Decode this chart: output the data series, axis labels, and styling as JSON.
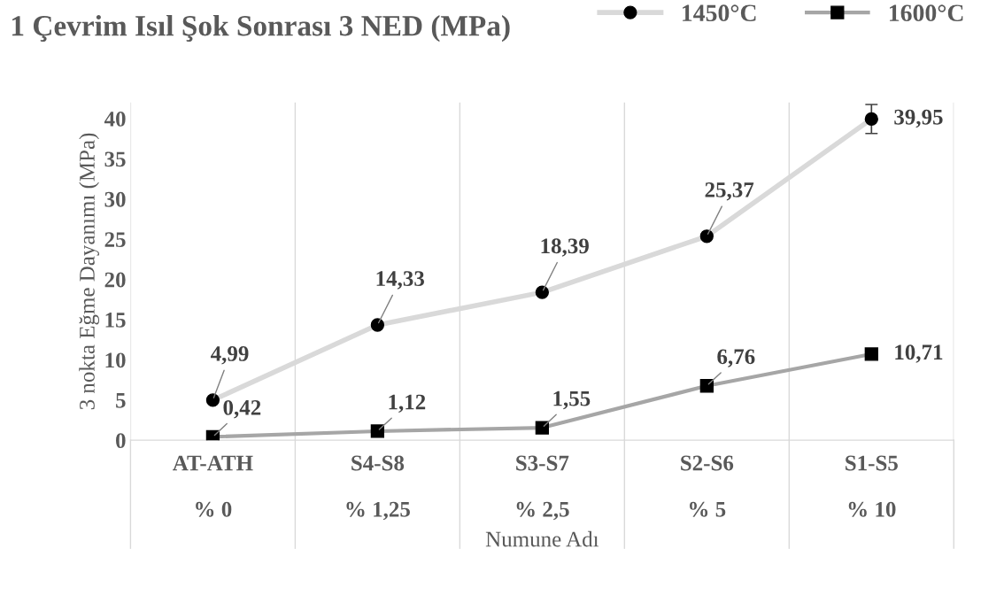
{
  "chart_data": {
    "type": "line",
    "title": "1 Çevrim Isıl Şok Sonrası 3 NED (MPa)",
    "xlabel": "Numune Adı",
    "ylabel": "3 nokta Eğme Dayanımı (MPa)",
    "categories": [
      "AT-ATH\n\n% 0",
      "S4-S8\n\n% 1,25",
      "S3-S7\n\n% 2,5",
      "S2-S6\n\n% 5",
      "S1-S5\n\n% 10"
    ],
    "series": [
      {
        "name": "1450°C",
        "color": "#d9d9d9",
        "marker": "circle",
        "values": [
          4.99,
          14.33,
          18.39,
          25.37,
          39.95
        ],
        "value_labels": [
          "4,99",
          "14,33",
          "18,39",
          "25,37",
          "39,95"
        ],
        "errors": [
          null,
          null,
          null,
          null,
          1.8
        ]
      },
      {
        "name": "1600°C",
        "color": "#a6a6a6",
        "marker": "square",
        "values": [
          0.42,
          1.12,
          1.55,
          6.76,
          10.71
        ],
        "value_labels": [
          "0,42",
          "1,12",
          "1,55",
          "6,76",
          "10,71"
        ]
      }
    ],
    "ylim": [
      0,
      42
    ],
    "yticks": [
      0,
      5,
      10,
      15,
      20,
      25,
      30,
      35,
      40
    ],
    "grid": "x",
    "legend": "top right",
    "line_style": "solid"
  }
}
